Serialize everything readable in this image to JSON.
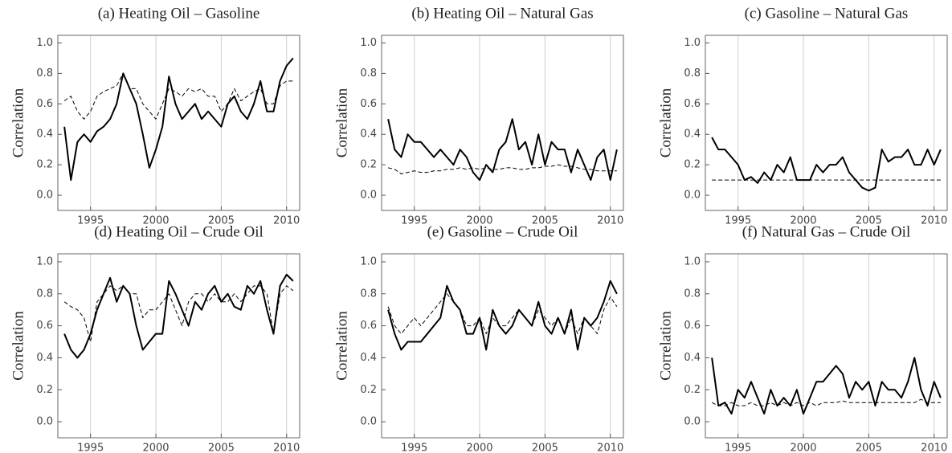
{
  "chart_data": [
    {
      "type": "line",
      "title": "(a) Heating Oil – Gasoline",
      "ylabel": "Correlation",
      "x": [
        1993,
        1993.5,
        1994,
        1994.5,
        1995,
        1995.5,
        1996,
        1996.5,
        1997,
        1997.5,
        1998,
        1998.5,
        1999,
        1999.5,
        2000,
        2000.5,
        2001,
        2001.5,
        2002,
        2002.5,
        2003,
        2003.5,
        2004,
        2004.5,
        2005,
        2005.5,
        2006,
        2006.5,
        2007,
        2007.5,
        2008,
        2008.5,
        2009,
        2009.5,
        2010,
        2010.5
      ],
      "series": [
        {
          "color": "#000000",
          "dashed": false,
          "values": [
            0.45,
            0.1,
            0.35,
            0.4,
            0.35,
            0.42,
            0.45,
            0.5,
            0.6,
            0.8,
            0.7,
            0.6,
            0.4,
            0.18,
            0.3,
            0.45,
            0.78,
            0.6,
            0.5,
            0.55,
            0.6,
            0.5,
            0.55,
            0.5,
            0.45,
            0.6,
            0.65,
            0.55,
            0.5,
            0.6,
            0.75,
            0.55,
            0.55,
            0.75,
            0.85,
            0.9
          ]
        },
        {
          "color": "#000000",
          "dashed": true,
          "values": [
            0.62,
            0.65,
            0.55,
            0.5,
            0.55,
            0.65,
            0.68,
            0.7,
            0.72,
            0.8,
            0.7,
            0.7,
            0.6,
            0.55,
            0.5,
            0.6,
            0.7,
            0.68,
            0.65,
            0.7,
            0.68,
            0.7,
            0.65,
            0.65,
            0.55,
            0.6,
            0.7,
            0.62,
            0.65,
            0.68,
            0.7,
            0.6,
            0.6,
            0.72,
            0.75,
            0.75
          ]
        }
      ],
      "xlim": [
        1992.5,
        2011
      ],
      "xticks": [
        1995,
        2000,
        2005,
        2010
      ],
      "ylim": [
        -0.1,
        1.05
      ],
      "yticks": [
        {
          "value": 0,
          "label": "0.0"
        },
        0.2,
        0.4,
        0.6,
        0.8,
        {
          "value": 1,
          "label": "1.0"
        }
      ],
      "grid": "x"
    },
    {
      "type": "line",
      "title": "(b) Heating Oil – Natural Gas",
      "ylabel": "Correlation",
      "x": [
        1993,
        1993.5,
        1994,
        1994.5,
        1995,
        1995.5,
        1996,
        1996.5,
        1997,
        1997.5,
        1998,
        1998.5,
        1999,
        1999.5,
        2000,
        2000.5,
        2001,
        2001.5,
        2002,
        2002.5,
        2003,
        2003.5,
        2004,
        2004.5,
        2005,
        2005.5,
        2006,
        2006.5,
        2007,
        2007.5,
        2008,
        2008.5,
        2009,
        2009.5,
        2010,
        2010.5
      ],
      "series": [
        {
          "color": "#000000",
          "dashed": false,
          "values": [
            0.5,
            0.3,
            0.25,
            0.4,
            0.35,
            0.35,
            0.3,
            0.25,
            0.3,
            0.25,
            0.2,
            0.3,
            0.25,
            0.15,
            0.1,
            0.2,
            0.15,
            0.3,
            0.35,
            0.5,
            0.3,
            0.35,
            0.2,
            0.4,
            0.2,
            0.35,
            0.3,
            0.3,
            0.15,
            0.3,
            0.2,
            0.1,
            0.25,
            0.3,
            0.1,
            0.3
          ]
        },
        {
          "color": "#000000",
          "dashed": true,
          "values": [
            0.18,
            0.17,
            0.14,
            0.15,
            0.16,
            0.15,
            0.15,
            0.16,
            0.16,
            0.17,
            0.17,
            0.18,
            0.17,
            0.18,
            0.17,
            0.18,
            0.17,
            0.17,
            0.18,
            0.18,
            0.17,
            0.17,
            0.18,
            0.18,
            0.19,
            0.19,
            0.2,
            0.19,
            0.19,
            0.18,
            0.17,
            0.17,
            0.16,
            0.16,
            0.16,
            0.16
          ]
        }
      ],
      "xlim": [
        1992.5,
        2011
      ],
      "xticks": [
        1995,
        2000,
        2005,
        2010
      ],
      "ylim": [
        -0.1,
        1.05
      ],
      "yticks": [
        {
          "value": 0,
          "label": "0.0"
        },
        0.2,
        0.4,
        0.6,
        0.8,
        {
          "value": 1,
          "label": "1.0"
        }
      ],
      "grid": "x"
    },
    {
      "type": "line",
      "title": "(c) Gasoline – Natural Gas",
      "ylabel": "Correlation",
      "x": [
        1993,
        1993.5,
        1994,
        1994.5,
        1995,
        1995.5,
        1996,
        1996.5,
        1997,
        1997.5,
        1998,
        1998.5,
        1999,
        1999.5,
        2000,
        2000.5,
        2001,
        2001.5,
        2002,
        2002.5,
        2003,
        2003.5,
        2004,
        2004.5,
        2005,
        2005.5,
        2006,
        2006.5,
        2007,
        2007.5,
        2008,
        2008.5,
        2009,
        2009.5,
        2010,
        2010.5
      ],
      "series": [
        {
          "color": "#000000",
          "dashed": false,
          "values": [
            0.38,
            0.3,
            0.3,
            0.25,
            0.2,
            0.1,
            0.12,
            0.08,
            0.15,
            0.1,
            0.2,
            0.15,
            0.25,
            0.1,
            0.1,
            0.1,
            0.2,
            0.15,
            0.2,
            0.2,
            0.25,
            0.15,
            0.1,
            0.05,
            0.03,
            0.05,
            0.3,
            0.22,
            0.25,
            0.25,
            0.3,
            0.2,
            0.2,
            0.3,
            0.2,
            0.3
          ]
        },
        {
          "color": "#000000",
          "dashed": true,
          "values": [
            0.1,
            0.1,
            0.1,
            0.1,
            0.1,
            0.1,
            0.1,
            0.1,
            0.1,
            0.1,
            0.1,
            0.1,
            0.1,
            0.1,
            0.1,
            0.1,
            0.1,
            0.1,
            0.1,
            0.1,
            0.1,
            0.1,
            0.1,
            0.1,
            0.1,
            0.1,
            0.1,
            0.1,
            0.1,
            0.1,
            0.1,
            0.1,
            0.1,
            0.1,
            0.1,
            0.1
          ]
        }
      ],
      "xlim": [
        1992.5,
        2011
      ],
      "xticks": [
        1995,
        2000,
        2005,
        2010
      ],
      "ylim": [
        -0.1,
        1.05
      ],
      "yticks": [
        {
          "value": 0,
          "label": "0.0"
        },
        0.2,
        0.4,
        0.6,
        0.8,
        {
          "value": 1,
          "label": "1.0"
        }
      ],
      "grid": "x"
    },
    {
      "type": "line",
      "title": "(d) Heating Oil – Crude Oil",
      "ylabel": "Correlation",
      "x": [
        1993,
        1993.5,
        1994,
        1994.5,
        1995,
        1995.5,
        1996,
        1996.5,
        1997,
        1997.5,
        1998,
        1998.5,
        1999,
        1999.5,
        2000,
        2000.5,
        2001,
        2001.5,
        2002,
        2002.5,
        2003,
        2003.5,
        2004,
        2004.5,
        2005,
        2005.5,
        2006,
        2006.5,
        2007,
        2007.5,
        2008,
        2008.5,
        2009,
        2009.5,
        2010,
        2010.5
      ],
      "series": [
        {
          "color": "#000000",
          "dashed": false,
          "values": [
            0.55,
            0.45,
            0.4,
            0.45,
            0.55,
            0.7,
            0.8,
            0.9,
            0.75,
            0.85,
            0.8,
            0.6,
            0.45,
            0.5,
            0.55,
            0.55,
            0.88,
            0.8,
            0.7,
            0.6,
            0.75,
            0.7,
            0.8,
            0.85,
            0.75,
            0.8,
            0.72,
            0.7,
            0.85,
            0.8,
            0.88,
            0.7,
            0.55,
            0.85,
            0.92,
            0.88
          ]
        },
        {
          "color": "#000000",
          "dashed": true,
          "values": [
            0.75,
            0.72,
            0.7,
            0.65,
            0.5,
            0.75,
            0.8,
            0.85,
            0.82,
            0.85,
            0.8,
            0.8,
            0.65,
            0.7,
            0.7,
            0.75,
            0.8,
            0.7,
            0.6,
            0.75,
            0.8,
            0.8,
            0.75,
            0.8,
            0.75,
            0.75,
            0.8,
            0.75,
            0.8,
            0.85,
            0.85,
            0.8,
            0.55,
            0.8,
            0.85,
            0.82
          ]
        }
      ],
      "xlim": [
        1992.5,
        2011
      ],
      "xticks": [
        1995,
        2000,
        2005,
        2010
      ],
      "ylim": [
        -0.1,
        1.05
      ],
      "yticks": [
        {
          "value": 0,
          "label": "0.0"
        },
        0.2,
        0.4,
        0.6,
        0.8,
        {
          "value": 1,
          "label": "1.0"
        }
      ],
      "grid": "x"
    },
    {
      "type": "line",
      "title": "(e) Gasoline – Crude Oil",
      "ylabel": "Correlation",
      "x": [
        1993,
        1993.5,
        1994,
        1994.5,
        1995,
        1995.5,
        1996,
        1996.5,
        1997,
        1997.5,
        1998,
        1998.5,
        1999,
        1999.5,
        2000,
        2000.5,
        2001,
        2001.5,
        2002,
        2002.5,
        2003,
        2003.5,
        2004,
        2004.5,
        2005,
        2005.5,
        2006,
        2006.5,
        2007,
        2007.5,
        2008,
        2008.5,
        2009,
        2009.5,
        2010,
        2010.5
      ],
      "series": [
        {
          "color": "#000000",
          "dashed": false,
          "values": [
            0.7,
            0.55,
            0.45,
            0.5,
            0.5,
            0.5,
            0.55,
            0.6,
            0.65,
            0.85,
            0.75,
            0.7,
            0.55,
            0.55,
            0.65,
            0.45,
            0.7,
            0.6,
            0.55,
            0.6,
            0.7,
            0.65,
            0.6,
            0.75,
            0.6,
            0.55,
            0.65,
            0.55,
            0.7,
            0.45,
            0.65,
            0.6,
            0.65,
            0.75,
            0.88,
            0.8
          ]
        },
        {
          "color": "#000000",
          "dashed": true,
          "values": [
            0.72,
            0.6,
            0.55,
            0.6,
            0.65,
            0.6,
            0.65,
            0.7,
            0.75,
            0.8,
            0.75,
            0.7,
            0.6,
            0.6,
            0.65,
            0.55,
            0.65,
            0.6,
            0.6,
            0.65,
            0.7,
            0.65,
            0.6,
            0.7,
            0.65,
            0.6,
            0.65,
            0.55,
            0.65,
            0.55,
            0.65,
            0.6,
            0.55,
            0.7,
            0.78,
            0.72
          ]
        }
      ],
      "xlim": [
        1992.5,
        2011
      ],
      "xticks": [
        1995,
        2000,
        2005,
        2010
      ],
      "ylim": [
        -0.1,
        1.05
      ],
      "yticks": [
        {
          "value": 0,
          "label": "0.0"
        },
        0.2,
        0.4,
        0.6,
        0.8,
        {
          "value": 1,
          "label": "1.0"
        }
      ],
      "grid": "x"
    },
    {
      "type": "line",
      "title": "(f) Natural Gas – Crude Oil",
      "ylabel": "Correlation",
      "x": [
        1993,
        1993.5,
        1994,
        1994.5,
        1995,
        1995.5,
        1996,
        1996.5,
        1997,
        1997.5,
        1998,
        1998.5,
        1999,
        1999.5,
        2000,
        2000.5,
        2001,
        2001.5,
        2002,
        2002.5,
        2003,
        2003.5,
        2004,
        2004.5,
        2005,
        2005.5,
        2006,
        2006.5,
        2007,
        2007.5,
        2008,
        2008.5,
        2009,
        2009.5,
        2010,
        2010.5
      ],
      "series": [
        {
          "color": "#000000",
          "dashed": false,
          "values": [
            0.4,
            0.1,
            0.12,
            0.05,
            0.2,
            0.15,
            0.25,
            0.15,
            0.05,
            0.2,
            0.1,
            0.15,
            0.1,
            0.2,
            0.05,
            0.15,
            0.25,
            0.25,
            0.3,
            0.35,
            0.3,
            0.15,
            0.25,
            0.2,
            0.25,
            0.1,
            0.25,
            0.2,
            0.2,
            0.15,
            0.25,
            0.4,
            0.2,
            0.1,
            0.25,
            0.15
          ]
        },
        {
          "color": "#000000",
          "dashed": true,
          "values": [
            0.12,
            0.1,
            0.1,
            0.12,
            0.1,
            0.1,
            0.12,
            0.1,
            0.1,
            0.12,
            0.1,
            0.12,
            0.1,
            0.12,
            0.1,
            0.12,
            0.1,
            0.12,
            0.12,
            0.12,
            0.13,
            0.12,
            0.12,
            0.12,
            0.12,
            0.12,
            0.12,
            0.12,
            0.12,
            0.12,
            0.12,
            0.12,
            0.14,
            0.12,
            0.12,
            0.12
          ]
        }
      ],
      "xlim": [
        1992.5,
        2011
      ],
      "xticks": [
        1995,
        2000,
        2005,
        2010
      ],
      "ylim": [
        -0.1,
        1.05
      ],
      "yticks": [
        {
          "value": 0,
          "label": "0.0"
        },
        0.2,
        0.4,
        0.6,
        0.8,
        {
          "value": 1,
          "label": "1.0"
        }
      ],
      "grid": "x"
    }
  ]
}
